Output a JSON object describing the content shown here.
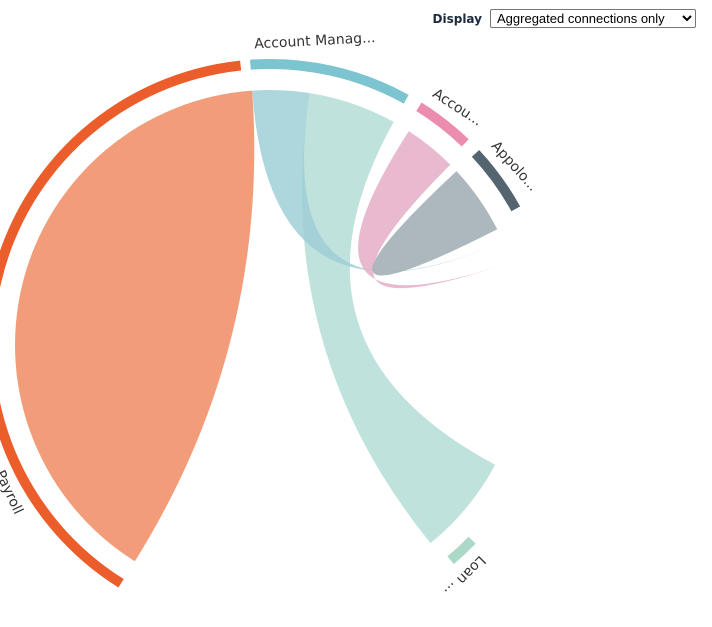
{
  "controls": {
    "display_label": "Display",
    "display_options": [
      "Aggregated connections only"
    ],
    "display_selected": "Aggregated connections only"
  },
  "chart_data": {
    "type": "chord",
    "groups": [
      {
        "id": "payroll",
        "label": "Payroll",
        "color": "#eb5d2a",
        "start_deg": 212,
        "end_deg": 354
      },
      {
        "id": "account_management",
        "label": "Account Manag...",
        "color": "#7cc4cf",
        "start_deg": 356,
        "end_deg": 389
      },
      {
        "id": "account",
        "label": "Accou...",
        "color": "#ec8db0",
        "start_deg": 392,
        "end_deg": 404
      },
      {
        "id": "appolo",
        "label": "Appolo...",
        "color": "#556570",
        "start_deg": 407,
        "end_deg": 421
      },
      {
        "id": "loan",
        "label": "Loan ...",
        "color": "#abd9c6",
        "start_deg": 494,
        "end_deg": 500
      }
    ],
    "chords": [
      {
        "source": "payroll",
        "target": "payroll",
        "s0": 212,
        "s1": 356,
        "t0": 212,
        "t1": 356,
        "color": "#f29c7a"
      },
      {
        "source": "account_management",
        "target": "loan",
        "s0": 369,
        "s1": 389,
        "t0": 478,
        "t1": 501,
        "color": "#b2dcd4"
      },
      {
        "source": "account_management",
        "target": "appolo",
        "s0": 356,
        "s1": 369,
        "t0": 426,
        "t1": 426,
        "color": "#9ccdd6"
      },
      {
        "source": "account",
        "target": "account_management",
        "s0": 393,
        "s1": 405,
        "t0": 431,
        "t1": 431,
        "color": "#e3a9c4"
      },
      {
        "source": "appolo",
        "target": "appolo",
        "s0": 407,
        "s1": 423,
        "t0": 423,
        "t1": 423,
        "color": "#9aa8ae"
      }
    ]
  }
}
